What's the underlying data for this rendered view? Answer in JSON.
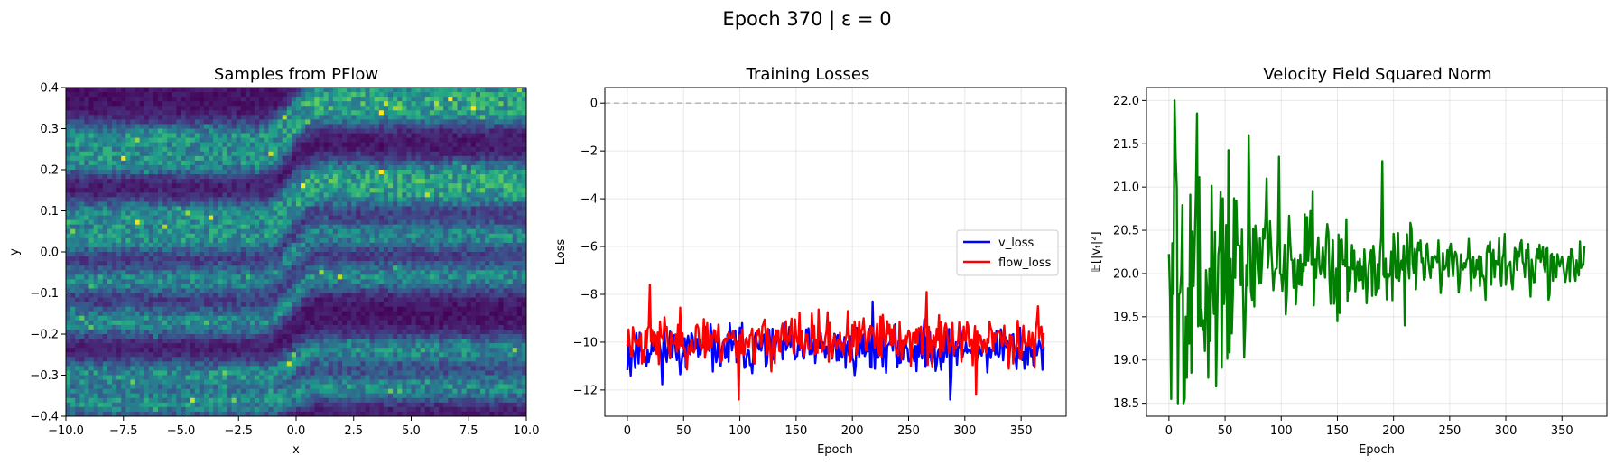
{
  "figure": {
    "suptitle": "Epoch 370 | ε = 0"
  },
  "chart_data": [
    {
      "type": "heatmap",
      "title": "Samples from PFlow",
      "xlabel": "x",
      "ylabel": "y",
      "xlim": [
        -10,
        10
      ],
      "ylim": [
        -0.4,
        0.4
      ],
      "x_ticks": [
        "−10.0",
        "−7.5",
        "−5.0",
        "−2.5",
        "0.0",
        "2.5",
        "5.0",
        "7.5",
        "10.0"
      ],
      "y_ticks": [
        "−0.4",
        "−0.3",
        "−0.2",
        "−0.1",
        "0.0",
        "0.1",
        "0.2",
        "0.3",
        "0.4"
      ],
      "colormap": "viridis",
      "density_bands": {
        "left_centers": [
          -0.37,
          -0.3,
          -0.17,
          -0.07,
          0.03,
          0.09,
          0.22,
          0.28
        ],
        "right_centers": [
          -0.33,
          -0.24,
          -0.06,
          0.04,
          0.14,
          0.19,
          0.34,
          0.39
        ],
        "transition_x": [
          -1.5,
          1.0
        ]
      }
    },
    {
      "type": "line",
      "title": "Training Losses",
      "xlabel": "Epoch",
      "ylabel": "Loss",
      "xlim": [
        -20,
        390
      ],
      "ylim": [
        -13.1,
        0.65
      ],
      "x_ticks": [
        "0",
        "50",
        "100",
        "150",
        "200",
        "250",
        "300",
        "350"
      ],
      "y_ticks": [
        "−12",
        "−10",
        "−8",
        "−6",
        "−4",
        "−2",
        "0"
      ],
      "grid": true,
      "legend_position": "center-right",
      "reference_line": {
        "y": 0,
        "style": "dashed",
        "color": "#b0b0b0"
      },
      "series": [
        {
          "name": "v_loss",
          "color": "#0000ff",
          "mean": -10.3,
          "spread": 0.9,
          "n": 371,
          "x_start": 0,
          "x_end": 370,
          "highlights": [
            {
              "x": 218,
              "y": -8.3
            },
            {
              "x": 287,
              "y": -12.4
            },
            {
              "x": 3,
              "y": -11.4
            }
          ]
        },
        {
          "name": "flow_loss",
          "color": "#ff0000",
          "mean": -9.9,
          "spread": 1.0,
          "n": 371,
          "x_start": 0,
          "x_end": 370,
          "highlights": [
            {
              "x": 20,
              "y": -7.6
            },
            {
              "x": 99,
              "y": -12.4
            },
            {
              "x": 266,
              "y": -7.9
            },
            {
              "x": 310,
              "y": -12.2
            },
            {
              "x": 365,
              "y": -8.5
            }
          ]
        }
      ]
    },
    {
      "type": "line",
      "title": "Velocity Field Squared Norm",
      "xlabel": "Epoch",
      "ylabel": "𝔼[|vₜ|²]",
      "xlim": [
        -20,
        390
      ],
      "ylim": [
        18.35,
        22.15
      ],
      "x_ticks": [
        "0",
        "50",
        "100",
        "150",
        "200",
        "250",
        "300",
        "350"
      ],
      "y_ticks": [
        "18.5",
        "19.0",
        "19.5",
        "20.0",
        "20.5",
        "21.0",
        "21.5",
        "22.0"
      ],
      "grid": true,
      "series": [
        {
          "color": "#008000",
          "mean": 20.1,
          "n": 371,
          "x_start": 0,
          "x_end": 370,
          "highlights": [
            {
              "x": 5,
              "y": 22.0
            },
            {
              "x": 8,
              "y": 18.5
            },
            {
              "x": 13,
              "y": 18.5
            },
            {
              "x": 25,
              "y": 21.85
            },
            {
              "x": 71,
              "y": 21.6
            },
            {
              "x": 98,
              "y": 21.35
            },
            {
              "x": 190,
              "y": 21.3
            },
            {
              "x": 210,
              "y": 19.4
            }
          ]
        }
      ]
    }
  ]
}
